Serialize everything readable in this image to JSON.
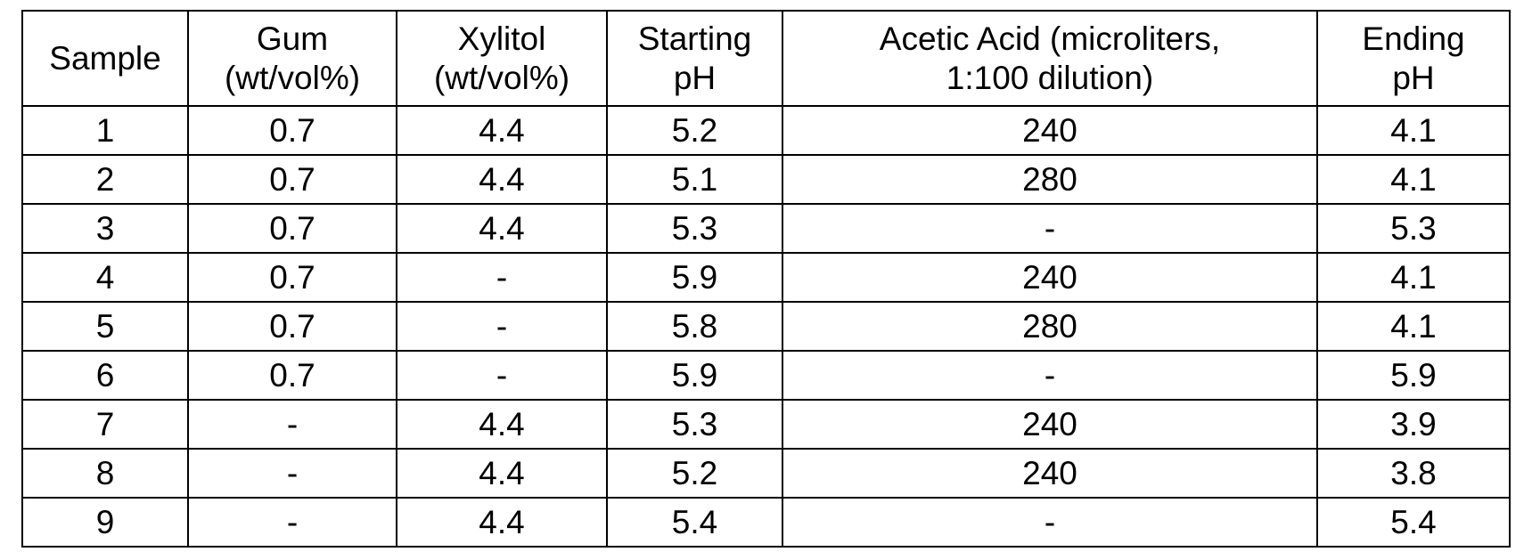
{
  "table": {
    "header": [
      [
        "Sample"
      ],
      [
        "Gum",
        "(wt/vol%)"
      ],
      [
        "Xylitol",
        "(wt/vol%)"
      ],
      [
        "Starting",
        "pH"
      ],
      [
        "Acetic Acid (microliters,",
        "1:100 dilution)"
      ],
      [
        "Ending",
        "pH"
      ]
    ],
    "rows": [
      [
        "1",
        "0.7",
        "4.4",
        "5.2",
        "240",
        "4.1"
      ],
      [
        "2",
        "0.7",
        "4.4",
        "5.1",
        "280",
        "4.1"
      ],
      [
        "3",
        "0.7",
        "4.4",
        "5.3",
        "-",
        "5.3"
      ],
      [
        "4",
        "0.7",
        "-",
        "5.9",
        "240",
        "4.1"
      ],
      [
        "5",
        "0.7",
        "-",
        "5.8",
        "280",
        "4.1"
      ],
      [
        "6",
        "0.7",
        "-",
        "5.9",
        "-",
        "5.9"
      ],
      [
        "7",
        "-",
        "4.4",
        "5.3",
        "240",
        "3.9"
      ],
      [
        "8",
        "-",
        "4.4",
        "5.2",
        "240",
        "3.8"
      ],
      [
        "9",
        "-",
        "4.4",
        "5.4",
        "-",
        "5.4"
      ]
    ]
  }
}
